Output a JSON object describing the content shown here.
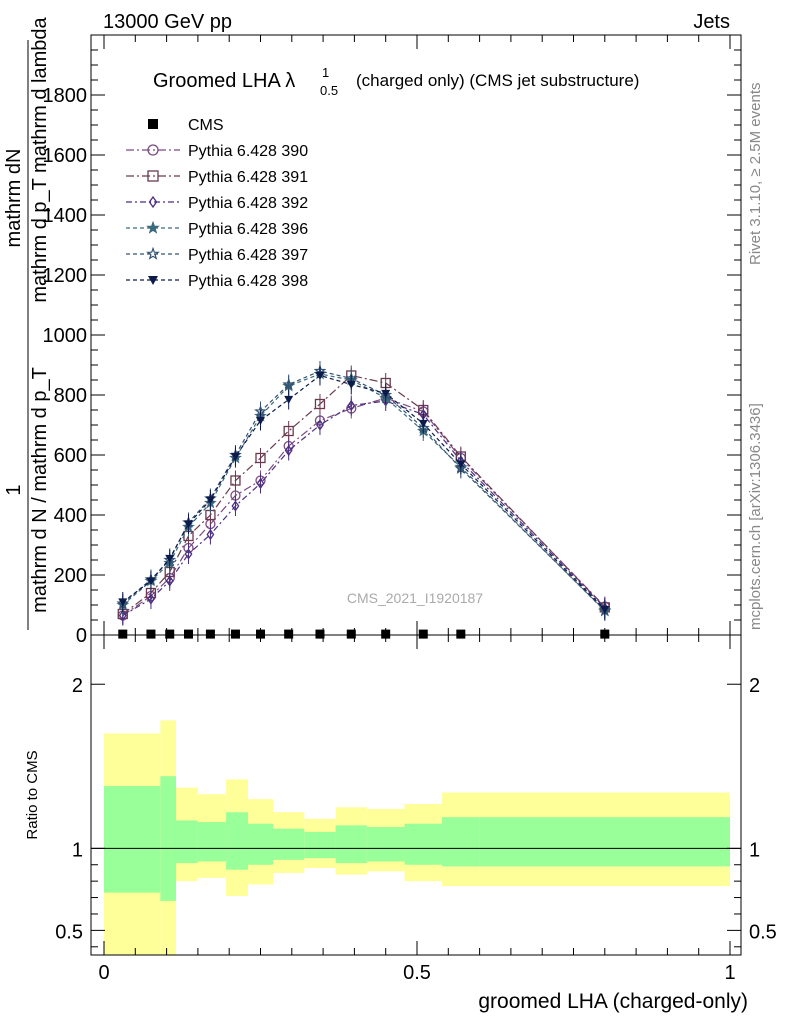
{
  "header": {
    "energy_label": "13000 GeV pp",
    "process_label": "Jets"
  },
  "side_labels": {
    "rivet": "Rivet 3.1.10, ≥ 2.5M events",
    "mcplots": "mcplots.cern.ch [arXiv:1306.3436]"
  },
  "chart_data": {
    "type": "scatter",
    "title_main": "Groomed LHA λ",
    "title_sup": "1",
    "title_sub": "0.5",
    "title_rest": "(charged only) (CMS jet substructure)",
    "ylabel_num": "1",
    "ylabel_den_top": "mathrm dN",
    "ylabel_den_mid": "mathrm d p_T mathrm d lambda",
    "ylabel_den_bot": "mathrm d N / mathrm d p_T",
    "ylabel_line": "mathrm d p_T mathrm d p",
    "ratio_ylabel": "Ratio to CMS",
    "xlabel": "groomed LHA (charged-only)",
    "watermark": "CMS_2021_I1920187",
    "xlim": [
      0,
      1
    ],
    "ylim": [
      0,
      2000
    ],
    "ratio_ylim": [
      0.35,
      2.3
    ],
    "x_ticks": [
      0,
      0.5,
      1
    ],
    "x_tick_labels": [
      "0",
      "0.5",
      "1"
    ],
    "y_ticks": [
      0,
      200,
      400,
      600,
      800,
      1000,
      1200,
      1400,
      1600,
      1800
    ],
    "y_tick_labels": [
      "0",
      "200",
      "400",
      "600",
      "800",
      "1000",
      "1200",
      "1400",
      "1600",
      "1800"
    ],
    "ratio_ticks": [
      0.5,
      1,
      2
    ],
    "ratio_tick_labels": [
      "0.5",
      "1",
      "2"
    ],
    "x": [
      0.03,
      0.075,
      0.105,
      0.135,
      0.17,
      0.21,
      0.25,
      0.295,
      0.345,
      0.395,
      0.45,
      0.51,
      0.57,
      0.8
    ],
    "series": [
      {
        "name": "CMS",
        "color": "#000000",
        "marker": "filled-square",
        "values": [
          3,
          3,
          3,
          3,
          3,
          3,
          3,
          3,
          3,
          3,
          3,
          3,
          3,
          3
        ]
      },
      {
        "name": "Pythia 6.428 390",
        "color": "#7b4a82",
        "marker": "open-circle",
        "values": [
          65,
          130,
          190,
          290,
          370,
          465,
          515,
          630,
          715,
          755,
          790,
          745,
          590,
          95
        ]
      },
      {
        "name": "Pythia 6.428 391",
        "color": "#6a3a4f",
        "marker": "open-square",
        "values": [
          70,
          140,
          210,
          330,
          400,
          515,
          590,
          680,
          770,
          865,
          840,
          750,
          595,
          92
        ]
      },
      {
        "name": "Pythia 6.428 392",
        "color": "#4a2e80",
        "marker": "open-diamond",
        "values": [
          65,
          120,
          180,
          270,
          335,
          430,
          505,
          615,
          700,
          765,
          780,
          735,
          580,
          90
        ]
      },
      {
        "name": "Pythia 6.428 396",
        "color": "#3b6b7d",
        "marker": "filled-star",
        "values": [
          100,
          180,
          240,
          360,
          440,
          590,
          730,
          830,
          870,
          850,
          790,
          680,
          560,
          80
        ]
      },
      {
        "name": "Pythia 6.428 397",
        "color": "#345373",
        "marker": "open-star",
        "values": [
          105,
          185,
          250,
          375,
          455,
          600,
          745,
          835,
          880,
          855,
          800,
          690,
          555,
          82
        ]
      },
      {
        "name": "Pythia 6.428 398",
        "color": "#0d1b4c",
        "marker": "filled-triangle-down",
        "values": [
          110,
          180,
          255,
          370,
          450,
          595,
          715,
          785,
          865,
          835,
          805,
          705,
          570,
          85
        ]
      }
    ],
    "ratio_bands": {
      "edges": [
        0,
        0.09,
        0.115,
        0.15,
        0.195,
        0.23,
        0.27,
        0.32,
        0.37,
        0.42,
        0.48,
        0.54,
        0.6,
        1
      ],
      "yellow_lo": [
        0.35,
        0.35,
        0.8,
        0.82,
        0.71,
        0.78,
        0.85,
        0.88,
        0.84,
        0.86,
        0.8,
        0.77,
        0.77
      ],
      "yellow_hi": [
        1.7,
        1.78,
        1.37,
        1.33,
        1.42,
        1.3,
        1.22,
        1.18,
        1.25,
        1.24,
        1.27,
        1.34,
        1.34
      ],
      "green_lo": [
        0.73,
        0.68,
        0.91,
        0.92,
        0.87,
        0.9,
        0.93,
        0.94,
        0.91,
        0.92,
        0.9,
        0.89,
        0.89
      ],
      "green_hi": [
        1.38,
        1.44,
        1.17,
        1.16,
        1.22,
        1.15,
        1.12,
        1.1,
        1.14,
        1.13,
        1.15,
        1.19,
        1.19
      ]
    },
    "band_colors": {
      "yellow": "#ffff99",
      "green": "#99ff99"
    }
  }
}
